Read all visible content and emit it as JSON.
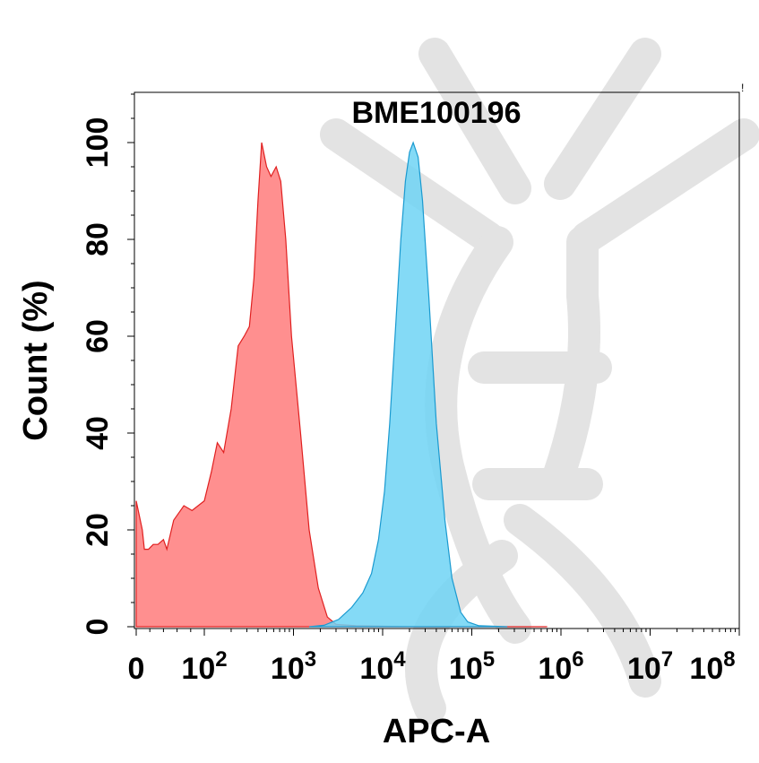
{
  "chart_data": {
    "type": "area",
    "title": "BME100196",
    "xlabel": "APC-A",
    "ylabel": "Count  (%)",
    "x_scale": "log",
    "xlim": [
      0,
      100000000
    ],
    "ylim": [
      0,
      110
    ],
    "x_tick_labels": [
      {
        "value": 0,
        "base": "0",
        "exp": ""
      },
      {
        "value": 100,
        "base": "10",
        "exp": "2"
      },
      {
        "value": 1000,
        "base": "10",
        "exp": "3"
      },
      {
        "value": 10000,
        "base": "10",
        "exp": "4"
      },
      {
        "value": 100000,
        "base": "10",
        "exp": "5"
      },
      {
        "value": 1000000,
        "base": "10",
        "exp": "6"
      },
      {
        "value": 10000000,
        "base": "10",
        "exp": "7"
      },
      {
        "value": 100000000,
        "base": "10",
        "exp": "8"
      }
    ],
    "y_ticks": [
      0,
      20,
      40,
      60,
      80,
      100
    ],
    "grid": false,
    "legend": "none",
    "series": [
      {
        "color": "#ff7b7b",
        "stroke": "#e02020",
        "points": [
          [
            0,
            26
          ],
          [
            9,
            20
          ],
          [
            12,
            16
          ],
          [
            18,
            16
          ],
          [
            25,
            17
          ],
          [
            32,
            17
          ],
          [
            40,
            18
          ],
          [
            45,
            16
          ],
          [
            55,
            22
          ],
          [
            70,
            25
          ],
          [
            82,
            24
          ],
          [
            100,
            26
          ],
          [
            120,
            32
          ],
          [
            140,
            38
          ],
          [
            165,
            36
          ],
          [
            200,
            45
          ],
          [
            240,
            58
          ],
          [
            280,
            60
          ],
          [
            320,
            62
          ],
          [
            360,
            72
          ],
          [
            400,
            88
          ],
          [
            440,
            100
          ],
          [
            500,
            95
          ],
          [
            560,
            93
          ],
          [
            640,
            95
          ],
          [
            720,
            92
          ],
          [
            820,
            80
          ],
          [
            950,
            60
          ],
          [
            1200,
            40
          ],
          [
            1500,
            20
          ],
          [
            1900,
            8
          ],
          [
            2400,
            2
          ],
          [
            3000,
            0.5
          ],
          [
            5000,
            0.2
          ],
          [
            20000,
            0
          ],
          [
            700000,
            0
          ]
        ]
      },
      {
        "color": "#6fd3f5",
        "stroke": "#1a9ad0",
        "points": [
          [
            1500,
            0
          ],
          [
            2200,
            0.3
          ],
          [
            3200,
            1.5
          ],
          [
            4500,
            4
          ],
          [
            6000,
            7
          ],
          [
            7500,
            11
          ],
          [
            9000,
            18
          ],
          [
            10500,
            28
          ],
          [
            12000,
            42
          ],
          [
            14000,
            62
          ],
          [
            16000,
            80
          ],
          [
            18000,
            92
          ],
          [
            20000,
            98
          ],
          [
            22000,
            100
          ],
          [
            25000,
            97
          ],
          [
            28000,
            88
          ],
          [
            33000,
            68
          ],
          [
            40000,
            42
          ],
          [
            50000,
            22
          ],
          [
            60000,
            10
          ],
          [
            75000,
            3
          ],
          [
            90000,
            1
          ],
          [
            120000,
            0.2
          ],
          [
            250000,
            0
          ]
        ]
      }
    ]
  }
}
